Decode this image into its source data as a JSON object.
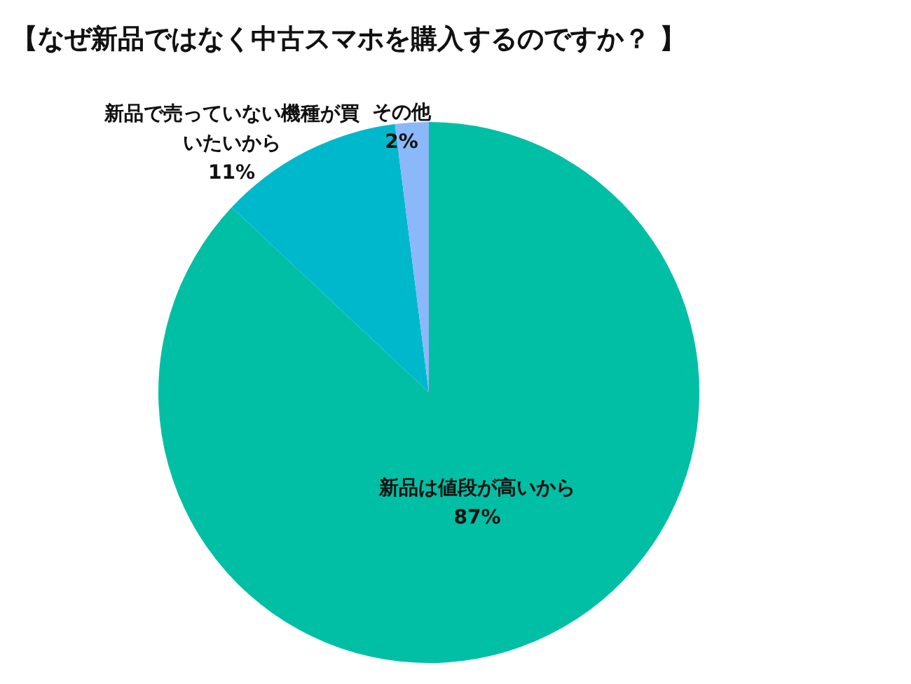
{
  "chart_data": {
    "type": "pie",
    "title": "【なぜ新品ではなく中古スマホを購入するのですか？ 】",
    "categories": [
      "新品は値段が高いから",
      "新品で売っていない機種が買いたいから",
      "その他"
    ],
    "values": [
      87,
      11,
      2
    ],
    "value_labels": [
      "87%",
      "11%",
      "2%"
    ],
    "colors": [
      "#00bfa5",
      "#00b8cc",
      "#8ab8f8"
    ]
  }
}
